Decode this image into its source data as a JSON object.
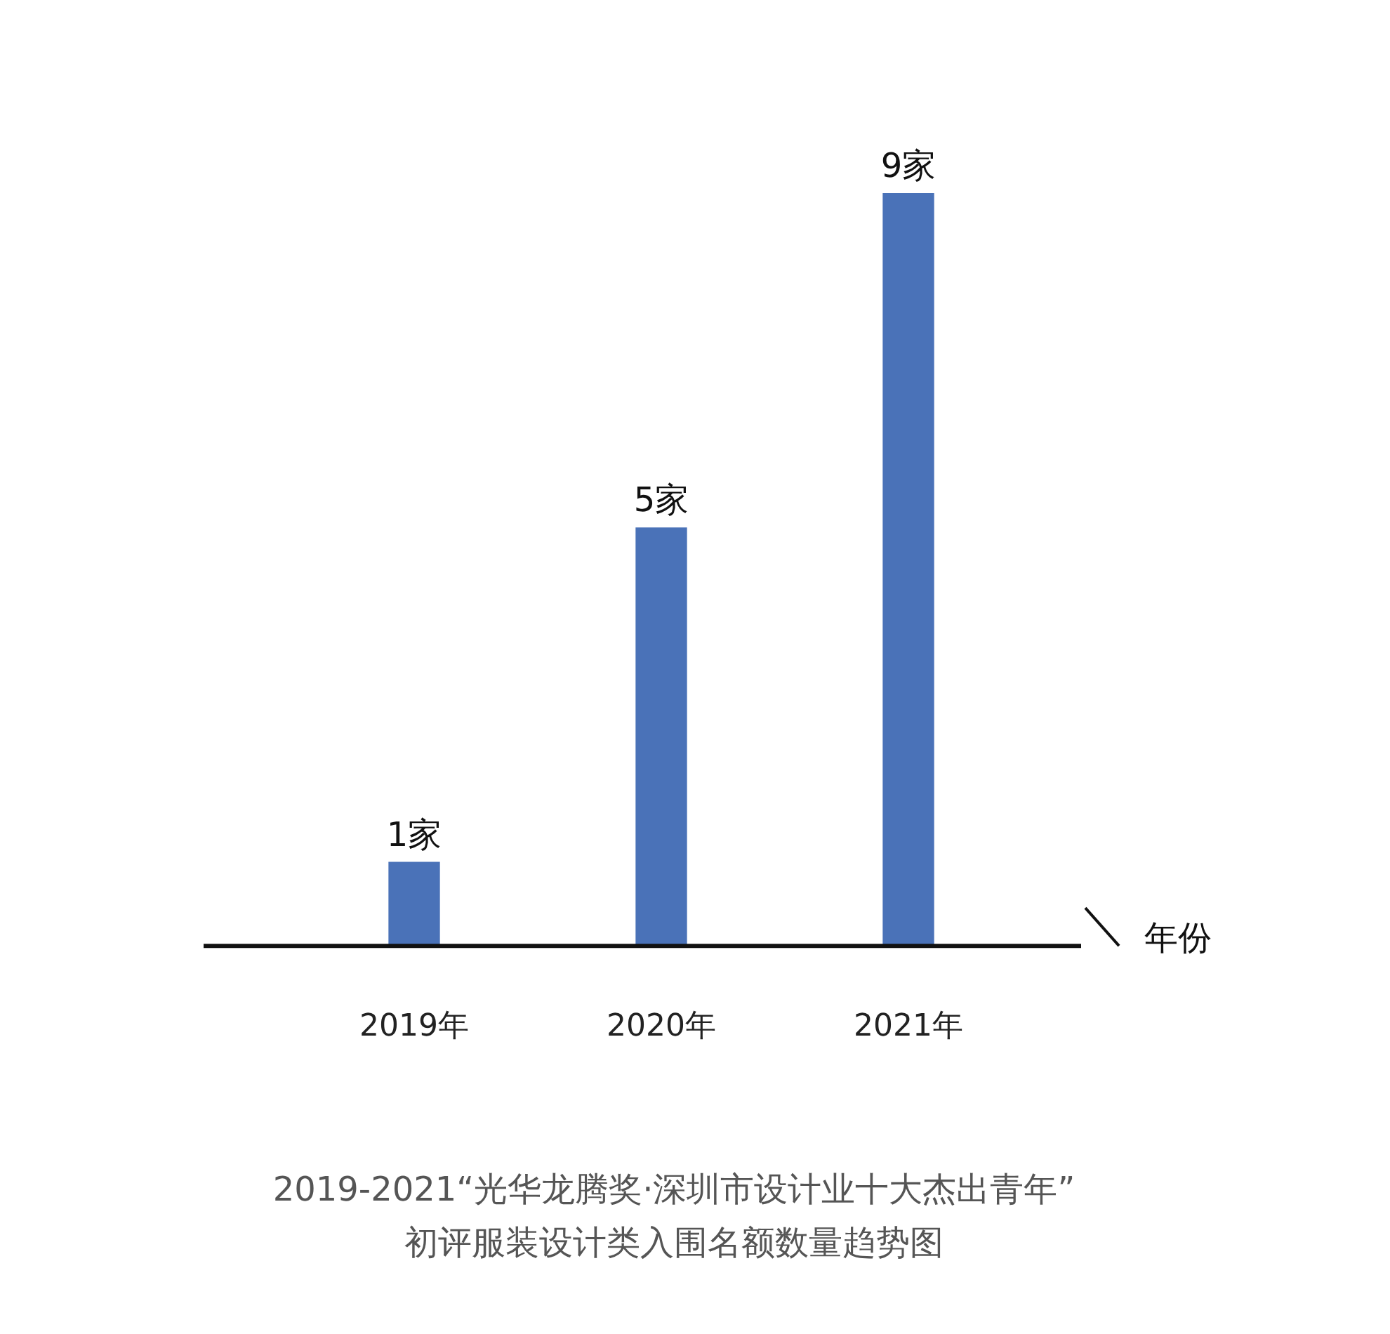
{
  "chart_data": {
    "type": "bar",
    "title": "2019-2021“光华龙腾奖·深圳市设计业十大杰出青年”",
    "subtitle": "初评服装设计类入围名额数量趋势图",
    "xlabel": "年份",
    "categories": [
      "2019年",
      "2020年",
      "2021年"
    ],
    "values": [
      1,
      5,
      9
    ],
    "value_labels": [
      "1家",
      "5家",
      "9家"
    ],
    "color": "#4a72b8",
    "grid": false,
    "legend": false
  }
}
